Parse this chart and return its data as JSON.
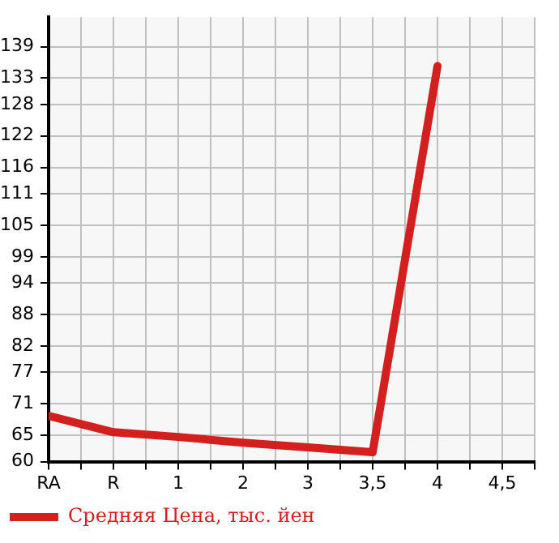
{
  "chart_data": {
    "type": "line",
    "categories": [
      "RA",
      "R",
      "1",
      "2",
      "3",
      "3,5",
      "4",
      "4,5"
    ],
    "series": [
      {
        "name": "Средняя Цена, тыс. йен",
        "color": "#d41f1f",
        "values": [
          68.7,
          65.6,
          64.7,
          63.6,
          62.7,
          61.8,
          135.3,
          null
        ]
      }
    ],
    "ylim": [
      60,
      144.6
    ],
    "yticks": [
      60,
      65,
      71,
      77,
      82,
      88,
      94,
      99,
      105,
      111,
      116,
      122,
      128,
      133,
      139
    ],
    "grid": true,
    "legend": "bottom left",
    "marker": "none",
    "line_style": "solid"
  }
}
